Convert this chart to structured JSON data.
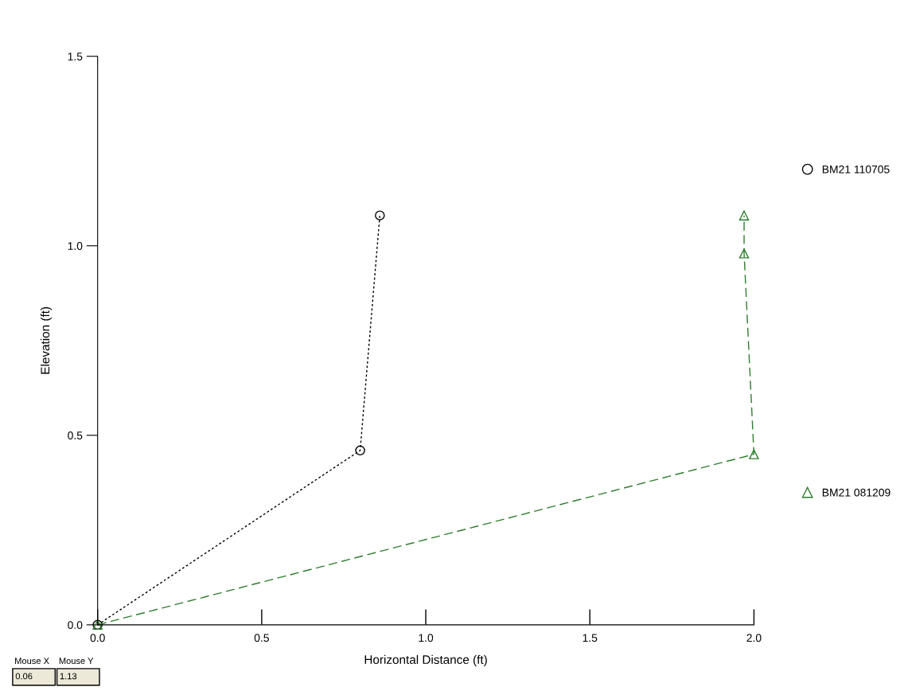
{
  "chart_data": {
    "type": "line",
    "xlabel": "Horizontal Distance (ft)",
    "ylabel": "Elevation (ft)",
    "series": [
      {
        "name": "BM21 110705",
        "color": "#000000",
        "line_style": "dotted",
        "marker": "circle",
        "x": [
          0,
          0.8,
          0.86
        ],
        "values": [
          0,
          0.46,
          1.08
        ]
      },
      {
        "name": "BM21 081209",
        "color": "#2e7d2e",
        "line_style": "dashed",
        "marker": "triangle",
        "x": [
          0,
          2.0,
          1.97,
          1.97
        ],
        "values": [
          0,
          0.45,
          0.98,
          1.08
        ]
      }
    ],
    "xlim": [
      0,
      2.0
    ],
    "ylim": [
      0,
      1.5
    ],
    "xticks": [
      {
        "value": 0,
        "label": "0.0"
      },
      {
        "value": 0.5,
        "label": "0.5"
      },
      {
        "value": 1,
        "label": "1.0"
      },
      {
        "value": 1.5,
        "label": "1.5"
      },
      {
        "value": 2,
        "label": "2.0"
      }
    ],
    "yticks": [
      {
        "value": 0,
        "label": "0.0"
      },
      {
        "value": 0.5,
        "label": "0.5"
      },
      {
        "value": 1,
        "label": "1.0"
      },
      {
        "value": 1.5,
        "label": "1.5"
      }
    ],
    "grid": false,
    "legend": "right",
    "annotations": [
      "Mouse X",
      "Mouse Y",
      "0.06",
      "1.13"
    ]
  }
}
